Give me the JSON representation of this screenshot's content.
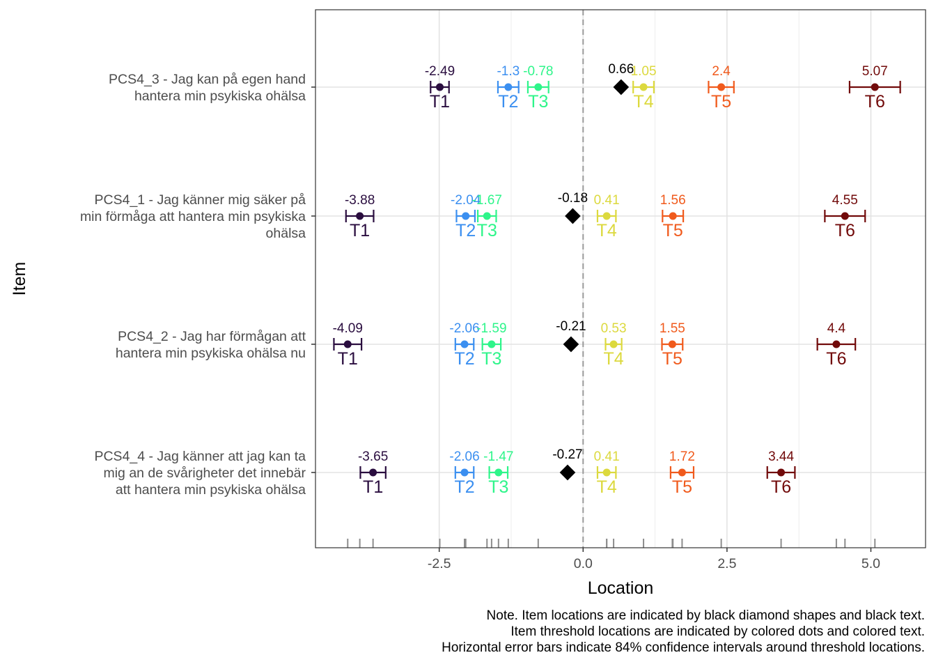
{
  "chart_data": {
    "type": "scatter",
    "xlabel": "Location",
    "ylabel": "Item",
    "xlim": [
      -4.65,
      5.95
    ],
    "x_ticks": [
      -2.5,
      0.0,
      2.5,
      5.0
    ],
    "x_tick_labels": [
      "-2.5",
      "0.0",
      "2.5",
      "5.0"
    ],
    "grid": true,
    "zero_line": "dashed",
    "threshold_names": [
      "T1",
      "T2",
      "T3",
      "T4",
      "T5",
      "T6"
    ],
    "threshold_colors": [
      "#2a0d3f",
      "#3b8ff0",
      "#2ef58a",
      "#dcd93e",
      "#f05a1c",
      "#710a0a"
    ],
    "item_marker_color": "#000000",
    "items": [
      {
        "label_lines": [
          "PCS4_3 - Jag kan på egen hand",
          "hantera min psykiska ohälsa"
        ],
        "location": 0.66,
        "location_label": "0.66",
        "thresholds": [
          -2.49,
          -1.3,
          -0.78,
          1.05,
          2.4,
          5.07
        ],
        "threshold_labels": [
          "-2.49",
          "-1.3",
          "-0.78",
          "1.05",
          "2.4",
          "5.07"
        ],
        "ci_low": [
          -2.65,
          -1.48,
          -0.96,
          0.87,
          2.18,
          4.63
        ],
        "ci_high": [
          -2.33,
          -1.12,
          -0.6,
          1.23,
          2.62,
          5.51
        ]
      },
      {
        "label_lines": [
          "PCS4_1 - Jag känner mig säker på",
          "min förmåga att hantera min psykiska",
          "ohälsa"
        ],
        "location": -0.18,
        "location_label": "-0.18",
        "thresholds": [
          -3.88,
          -2.04,
          -1.67,
          0.41,
          1.56,
          4.55
        ],
        "threshold_labels": [
          "-3.88",
          "-2.04",
          "-1.67",
          "0.41",
          "1.56",
          "4.55"
        ],
        "ci_low": [
          -4.12,
          -2.2,
          -1.83,
          0.25,
          1.38,
          4.2
        ],
        "ci_high": [
          -3.64,
          -1.88,
          -1.51,
          0.57,
          1.74,
          4.9
        ]
      },
      {
        "label_lines": [
          "PCS4_2 - Jag har förmågan att",
          "hantera min psykiska ohälsa nu"
        ],
        "location": -0.21,
        "location_label": "-0.21",
        "thresholds": [
          -4.09,
          -2.06,
          -1.59,
          0.53,
          1.55,
          4.4
        ],
        "threshold_labels": [
          "-4.09",
          "-2.06",
          "-1.59",
          "0.53",
          "1.55",
          "4.4"
        ],
        "ci_low": [
          -4.33,
          -2.22,
          -1.75,
          0.39,
          1.37,
          4.07
        ],
        "ci_high": [
          -3.85,
          -1.9,
          -1.43,
          0.67,
          1.73,
          4.73
        ]
      },
      {
        "label_lines": [
          "PCS4_4 - Jag känner att jag kan ta",
          "mig an de svårigheter det innebär",
          "att hantera min psykiska ohälsa"
        ],
        "location": -0.27,
        "location_label": "-0.27",
        "thresholds": [
          -3.65,
          -2.06,
          -1.47,
          0.41,
          1.72,
          3.44
        ],
        "threshold_labels": [
          "-3.65",
          "-2.06",
          "-1.47",
          "0.41",
          "1.72",
          "3.44"
        ],
        "ci_low": [
          -3.87,
          -2.22,
          -1.63,
          0.25,
          1.52,
          3.2
        ],
        "ci_high": [
          -3.43,
          -1.9,
          -1.31,
          0.57,
          1.92,
          3.68
        ]
      }
    ]
  },
  "notes": [
    "Note. Item locations are indicated by black diamond shapes and black text.",
    "Item threshold locations are indicated by colored dots and colored text.",
    "Horizontal error bars indicate 84% confidence intervals around threshold locations."
  ]
}
